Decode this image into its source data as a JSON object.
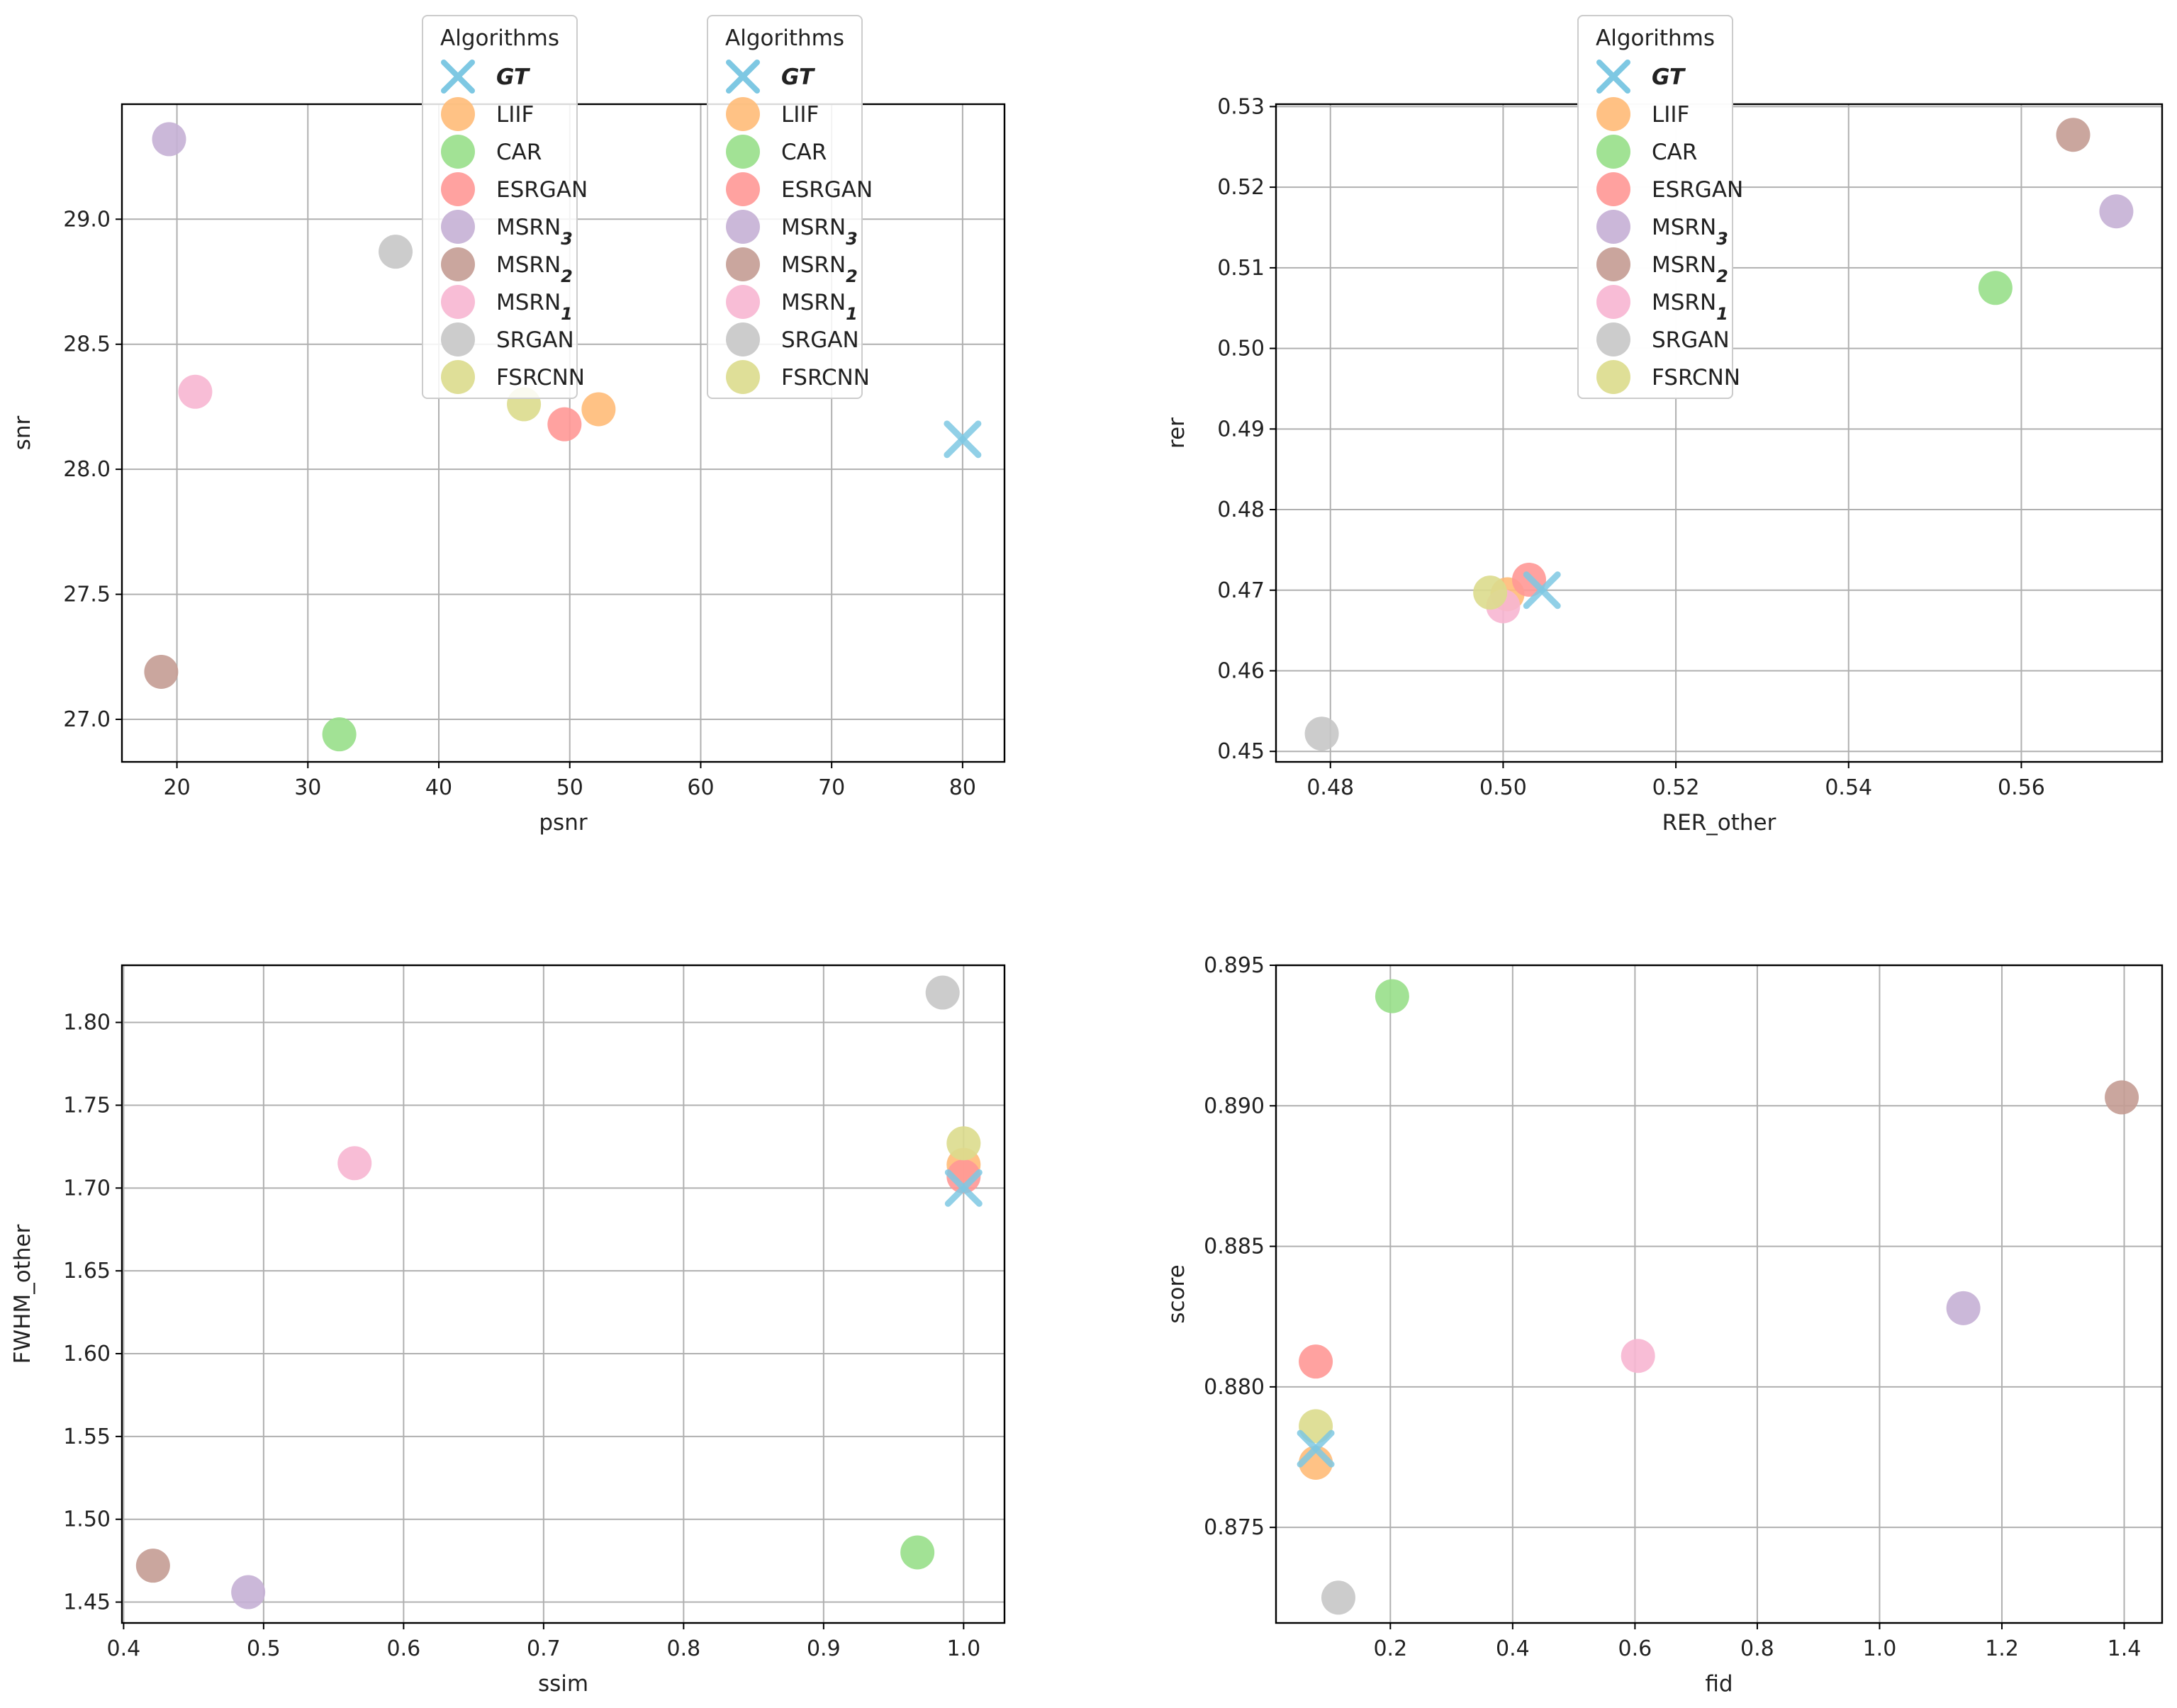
{
  "chart_data": [
    {
      "type": "scatter",
      "xlabel": "psnr",
      "ylabel": "snr",
      "xlim": [
        15.8,
        83.2
      ],
      "ylim": [
        26.83,
        29.46
      ],
      "xticks": [
        "20",
        "30",
        "40",
        "50",
        "60",
        "70",
        "80"
      ],
      "yticks": [
        "27.0",
        "27.5",
        "28.0",
        "28.5",
        "29.0"
      ],
      "grid": true,
      "legend": {
        "title": "Algorithms",
        "placement": "top-center"
      },
      "series": [
        {
          "name": "GT",
          "marker": "x",
          "color": "#7ec8e3",
          "x": 80.0,
          "y": 28.12
        },
        {
          "name": "LIIF",
          "color": "#ffbb78",
          "x": 52.2,
          "y": 28.24
        },
        {
          "name": "CAR",
          "color": "#98df8a",
          "x": 32.4,
          "y": 26.94
        },
        {
          "name": "ESRGAN",
          "color": "#ff9896",
          "x": 49.6,
          "y": 28.18
        },
        {
          "name": "MSRN",
          "subscript": "3",
          "color": "#c5b0d5",
          "x": 19.4,
          "y": 29.32
        },
        {
          "name": "MSRN",
          "subscript": "2",
          "color": "#c49c94",
          "x": 18.8,
          "y": 27.19
        },
        {
          "name": "MSRN",
          "subscript": "1",
          "color": "#f7b6d2",
          "x": 21.4,
          "y": 28.31
        },
        {
          "name": "SRGAN",
          "color": "#c7c7c7",
          "x": 36.7,
          "y": 28.87
        },
        {
          "name": "FSRCNN",
          "color": "#dbdb8d",
          "x": 46.5,
          "y": 28.26
        }
      ]
    },
    {
      "type": "scatter",
      "xlabel": "RER_other",
      "ylabel": "rer",
      "xlim": [
        0.4737,
        0.5763
      ],
      "ylim": [
        0.4487,
        0.5303
      ],
      "xticks": [
        "0.48",
        "0.50",
        "0.52",
        "0.54",
        "0.56"
      ],
      "yticks": [
        "0.45",
        "0.46",
        "0.47",
        "0.48",
        "0.49",
        "0.50",
        "0.51",
        "0.52",
        "0.53"
      ],
      "grid": true,
      "legend": {
        "title": "Algorithms",
        "placement": "top-center"
      },
      "series": [
        {
          "name": "GT",
          "marker": "x",
          "color": "#7ec8e3",
          "x": 0.5045,
          "y": 0.47
        },
        {
          "name": "LIIF",
          "color": "#ffbb78",
          "x": 0.5005,
          "y": 0.4695
        },
        {
          "name": "CAR",
          "color": "#98df8a",
          "x": 0.557,
          "y": 0.5075
        },
        {
          "name": "ESRGAN",
          "color": "#ff9896",
          "x": 0.503,
          "y": 0.4713
        },
        {
          "name": "MSRN",
          "subscript": "3",
          "color": "#c5b0d5",
          "x": 0.571,
          "y": 0.517
        },
        {
          "name": "MSRN",
          "subscript": "2",
          "color": "#c49c94",
          "x": 0.566,
          "y": 0.5265
        },
        {
          "name": "MSRN",
          "subscript": "1",
          "color": "#f7b6d2",
          "x": 0.5,
          "y": 0.468
        },
        {
          "name": "SRGAN",
          "color": "#c7c7c7",
          "x": 0.479,
          "y": 0.4522
        },
        {
          "name": "FSRCNN",
          "color": "#dbdb8d",
          "x": 0.4985,
          "y": 0.4697
        }
      ]
    },
    {
      "type": "scatter",
      "xlabel": "ssim",
      "ylabel": "FWHM_other",
      "xlim": [
        0.3988,
        1.0292
      ],
      "ylim": [
        1.4374,
        1.8345
      ],
      "xticks": [
        "0.4",
        "0.5",
        "0.6",
        "0.7",
        "0.8",
        "0.9",
        "1.0"
      ],
      "yticks": [
        "1.45",
        "1.50",
        "1.55",
        "1.60",
        "1.65",
        "1.70",
        "1.75",
        "1.80"
      ],
      "grid": true,
      "legend": {
        "title": "Algorithms",
        "placement": "top-center"
      },
      "series": [
        {
          "name": "GT",
          "marker": "x",
          "color": "#7ec8e3",
          "x": 1.0,
          "y": 1.7
        },
        {
          "name": "LIIF",
          "color": "#ffbb78",
          "x": 1.0,
          "y": 1.714
        },
        {
          "name": "CAR",
          "color": "#98df8a",
          "x": 0.967,
          "y": 1.48
        },
        {
          "name": "ESRGAN",
          "color": "#ff9896",
          "x": 1.0,
          "y": 1.707
        },
        {
          "name": "MSRN",
          "subscript": "3",
          "color": "#c5b0d5",
          "x": 0.489,
          "y": 1.456
        },
        {
          "name": "MSRN",
          "subscript": "2",
          "color": "#c49c94",
          "x": 0.421,
          "y": 1.472
        },
        {
          "name": "MSRN",
          "subscript": "1",
          "color": "#f7b6d2",
          "x": 0.565,
          "y": 1.715
        },
        {
          "name": "SRGAN",
          "color": "#c7c7c7",
          "x": 0.985,
          "y": 1.818
        },
        {
          "name": "FSRCNN",
          "color": "#dbdb8d",
          "x": 1.0,
          "y": 1.727
        }
      ]
    },
    {
      "type": "scatter",
      "xlabel": "fid",
      "ylabel": "score",
      "xlim": [
        0.013,
        1.462
      ],
      "ylim": [
        0.8716,
        0.895
      ],
      "xticks": [
        "0.2",
        "0.4",
        "0.6",
        "0.8",
        "1.0",
        "1.2",
        "1.4"
      ],
      "yticks": [
        "0.875",
        "0.880",
        "0.885",
        "0.890",
        "0.895"
      ],
      "grid": true,
      "legend": {
        "title": "Algorithms",
        "placement": "top-center"
      },
      "series": [
        {
          "name": "GT",
          "marker": "x",
          "color": "#7ec8e3",
          "x": 0.078,
          "y": 0.8778
        },
        {
          "name": "LIIF",
          "color": "#ffbb78",
          "x": 0.078,
          "y": 0.8773
        },
        {
          "name": "CAR",
          "color": "#98df8a",
          "x": 0.203,
          "y": 0.8939
        },
        {
          "name": "ESRGAN",
          "color": "#ff9896",
          "x": 0.078,
          "y": 0.8809
        },
        {
          "name": "MSRN",
          "subscript": "3",
          "color": "#c5b0d5",
          "x": 1.137,
          "y": 0.8828
        },
        {
          "name": "MSRN",
          "subscript": "2",
          "color": "#c49c94",
          "x": 1.396,
          "y": 0.8903
        },
        {
          "name": "MSRN",
          "subscript": "1",
          "color": "#f7b6d2",
          "x": 0.605,
          "y": 0.8811
        },
        {
          "name": "SRGAN",
          "color": "#c7c7c7",
          "x": 0.115,
          "y": 0.8725
        },
        {
          "name": "FSRCNN",
          "color": "#dbdb8d",
          "x": 0.078,
          "y": 0.8786
        }
      ]
    }
  ]
}
